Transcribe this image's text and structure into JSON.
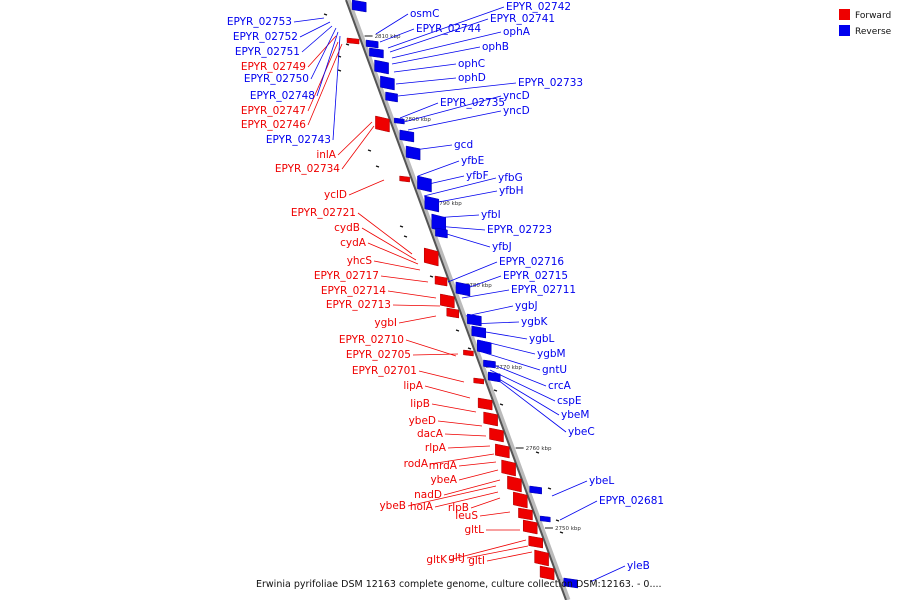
{
  "legend": {
    "forward_label": "Forward",
    "reverse_label": "Reverse",
    "forward_color": "#ee0000",
    "reverse_color": "#0000ee"
  },
  "caption": "Erwinia pyrifoliae DSM 12163 complete genome, culture collection DSM:12163. - 0....",
  "scale_marks": [
    "2810 kbp",
    "2800 kbp",
    "2790 kbp",
    "2780 kbp",
    "2770 kbp",
    "2760 kbp",
    "2750 kbp"
  ],
  "forward_genes": [
    "EPYR_02749",
    "EPYR_02747",
    "EPYR_02746",
    "inlA",
    "EPYR_02734",
    "yclD",
    "EPYR_02721",
    "cydB",
    "cydA",
    "yhcS",
    "EPYR_02717",
    "EPYR_02714",
    "EPYR_02713",
    "ygbI",
    "EPYR_02710",
    "EPYR_02705",
    "EPYR_02701",
    "lipA",
    "lipB",
    "ybeD",
    "dacA",
    "rlpA",
    "rodA",
    "mrdA",
    "ybeA",
    "nadD",
    "ybeB",
    "holA",
    "rlpB",
    "leuS",
    "gltL",
    "gltK",
    "gltJ",
    "gltI"
  ],
  "reverse_genes_left": [
    "EPYR_02753",
    "EPYR_02752",
    "EPYR_02751",
    "EPYR_02750",
    "EPYR_02748",
    "EPYR_02743"
  ],
  "reverse_genes_right": [
    "osmC",
    "EPYR_02744",
    "EPYR_02742",
    "EPYR_02741",
    "ophA",
    "ophB",
    "ophC",
    "ophD",
    "EPYR_02733",
    "EPYR_02735",
    "yncD",
    "yncD",
    "gcd",
    "yfbE",
    "yfbF",
    "yfbG",
    "yfbH",
    "yfbI",
    "EPYR_02723",
    "yfbJ",
    "EPYR_02716",
    "EPYR_02715",
    "EPYR_02711",
    "ygbJ",
    "ygbK",
    "ygbL",
    "ygbM",
    "gntU",
    "crcA",
    "cspE",
    "ybeM",
    "ybeC",
    "ybeL",
    "EPYR_02681",
    "yleB"
  ]
}
